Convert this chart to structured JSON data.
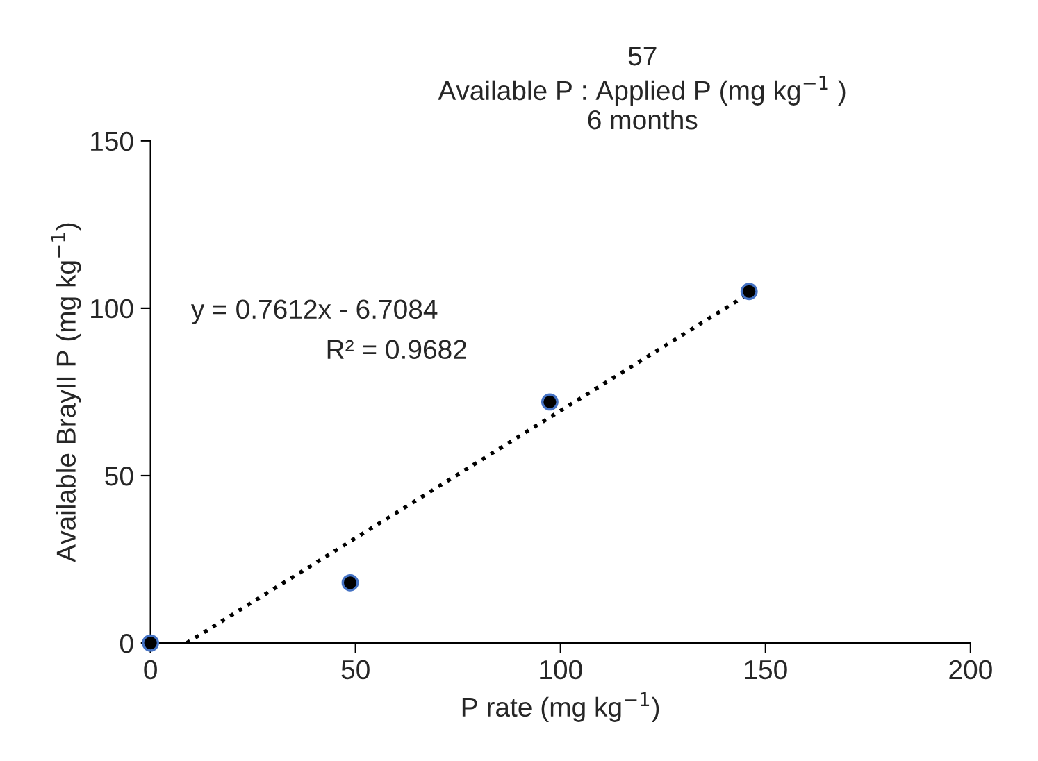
{
  "chart_data": {
    "type": "scatter",
    "title": "57\nAvailable P : Applied P (mg kg$^{−1}$ )\n6 months",
    "xlabel": "P rate (mg kg$^{−1}$)",
    "ylabel": "Available BrayII P (mg kg$^{−1}$)",
    "series": [
      {
        "color": "#000000",
        "x": [
          0,
          48.7,
          97.4,
          146
        ],
        "values": [
          0,
          18,
          72,
          105
        ],
        "marker": "circle"
      },
      {
        "type": "line",
        "color": "#000000",
        "x": [
          8.81,
          146
        ],
        "values": [
          0,
          104.4
        ],
        "line_style": "dotted",
        "marker": "none"
      }
    ],
    "annotations": [
      "y = 0.7612x - 6.7084",
      "R² = 0.9682"
    ],
    "xlim": [
      0,
      200
    ],
    "xticks": [
      0,
      50,
      100,
      150,
      200
    ],
    "ylim": [
      0,
      150
    ],
    "yticks": [
      0,
      50,
      100,
      150
    ],
    "grid": false,
    "legend": false
  }
}
